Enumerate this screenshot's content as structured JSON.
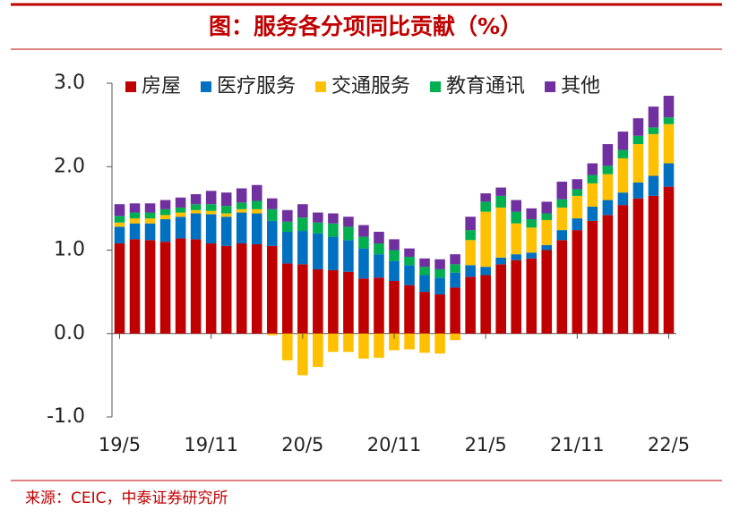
{
  "chart_data": {
    "type": "stacked_bar",
    "title": "图：服务各分项同比贡献（%）",
    "source": "来源：CEIC，中泰证券研究所",
    "categories": [
      "19/5",
      null,
      null,
      null,
      null,
      null,
      "19/11",
      null,
      null,
      null,
      null,
      null,
      "20/5",
      null,
      null,
      null,
      null,
      null,
      "20/11",
      null,
      null,
      null,
      null,
      null,
      "21/5",
      null,
      null,
      null,
      null,
      null,
      "21/11",
      null,
      null,
      null,
      null,
      null,
      "22/5"
    ],
    "series": [
      {
        "name": "房屋",
        "color": "#c00000",
        "values": [
          1.08,
          1.13,
          1.12,
          1.1,
          1.14,
          1.13,
          1.08,
          1.05,
          1.08,
          1.07,
          1.05,
          0.84,
          0.83,
          0.77,
          0.76,
          0.74,
          0.66,
          0.67,
          0.63,
          0.58,
          0.5,
          0.47,
          0.55,
          0.68,
          0.7,
          0.83,
          0.88,
          0.9,
          1.0,
          1.12,
          1.24,
          1.35,
          1.42,
          1.54,
          1.62,
          1.65,
          1.76
        ]
      },
      {
        "name": "医疗服务",
        "color": "#0070c0",
        "values": [
          0.2,
          0.19,
          0.2,
          0.27,
          0.26,
          0.31,
          0.35,
          0.35,
          0.37,
          0.37,
          0.3,
          0.38,
          0.4,
          0.43,
          0.4,
          0.38,
          0.36,
          0.28,
          0.24,
          0.24,
          0.2,
          0.2,
          0.18,
          0.14,
          0.1,
          0.08,
          0.07,
          0.07,
          0.06,
          0.12,
          0.14,
          0.17,
          0.18,
          0.15,
          0.19,
          0.24,
          0.28
        ]
      },
      {
        "name": "交通服务",
        "color": "#ffc000",
        "values": [
          0.05,
          0.06,
          0.06,
          0.05,
          0.05,
          0.04,
          0.04,
          0.04,
          0.04,
          0.05,
          -0.02,
          -0.32,
          -0.5,
          -0.4,
          -0.22,
          -0.22,
          -0.3,
          -0.29,
          -0.2,
          -0.19,
          -0.23,
          -0.24,
          -0.08,
          0.3,
          0.66,
          0.6,
          0.37,
          0.3,
          0.3,
          0.27,
          0.27,
          0.28,
          0.31,
          0.41,
          0.46,
          0.5,
          0.47
        ]
      },
      {
        "name": "教育通讯",
        "color": "#00b050",
        "values": [
          0.08,
          0.07,
          0.07,
          0.07,
          0.06,
          0.07,
          0.08,
          0.09,
          0.08,
          0.1,
          0.14,
          0.12,
          0.16,
          0.13,
          0.16,
          0.16,
          0.14,
          0.13,
          0.13,
          0.1,
          0.1,
          0.1,
          0.1,
          0.12,
          0.12,
          0.14,
          0.14,
          0.1,
          0.08,
          0.1,
          0.08,
          0.1,
          0.1,
          0.1,
          0.1,
          0.08,
          0.08
        ]
      },
      {
        "name": "其他",
        "color": "#7030a0",
        "values": [
          0.14,
          0.11,
          0.11,
          0.11,
          0.12,
          0.12,
          0.16,
          0.16,
          0.17,
          0.19,
          0.13,
          0.14,
          0.16,
          0.12,
          0.12,
          0.12,
          0.14,
          0.14,
          0.13,
          0.1,
          0.1,
          0.12,
          0.12,
          0.16,
          0.1,
          0.1,
          0.14,
          0.13,
          0.14,
          0.21,
          0.12,
          0.14,
          0.26,
          0.22,
          0.21,
          0.25,
          0.26
        ]
      }
    ],
    "ylim": [
      -1.0,
      3.0
    ],
    "yticks": [
      {
        "value": -1,
        "label": "-1.0"
      },
      {
        "value": 0,
        "label": "0.0"
      },
      {
        "value": 1,
        "label": "1.0"
      },
      {
        "value": 2,
        "label": "2.0"
      },
      {
        "value": 3,
        "label": "3.0"
      }
    ],
    "legend": "top"
  }
}
